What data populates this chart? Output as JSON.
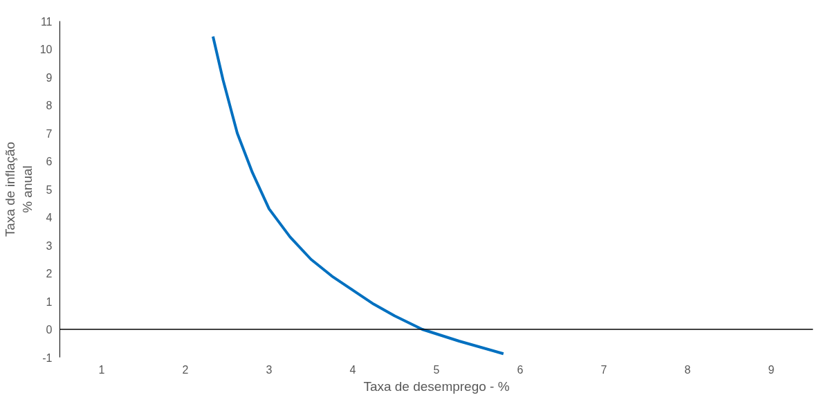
{
  "chart_data": {
    "type": "line",
    "xlabel": "Taxa de desemprego - %",
    "ylabel": "Taxa de inflação\n% anual",
    "xlim": [
      0.5,
      9.5
    ],
    "xticks": [
      1,
      2,
      3,
      4,
      5,
      6,
      7,
      8,
      9
    ],
    "ylim": [
      -1,
      11
    ],
    "yticks": [
      -1,
      0,
      1,
      2,
      3,
      4,
      5,
      6,
      7,
      8,
      9,
      10,
      11
    ],
    "grid": false,
    "ref_lines": [
      {
        "axis": "y",
        "value": 0,
        "color": "#000000"
      }
    ],
    "series": [
      {
        "color": "#0070c0",
        "x": [
          2.33,
          2.45,
          2.62,
          2.8,
          3.0,
          3.25,
          3.5,
          3.75,
          4.0,
          4.25,
          4.5,
          4.83,
          5.27,
          5.8
        ],
        "values": [
          10.45,
          8.9,
          7.0,
          5.6,
          4.3,
          3.3,
          2.5,
          1.9,
          1.4,
          0.9,
          0.48,
          0.0,
          -0.42,
          -0.87
        ]
      }
    ]
  }
}
